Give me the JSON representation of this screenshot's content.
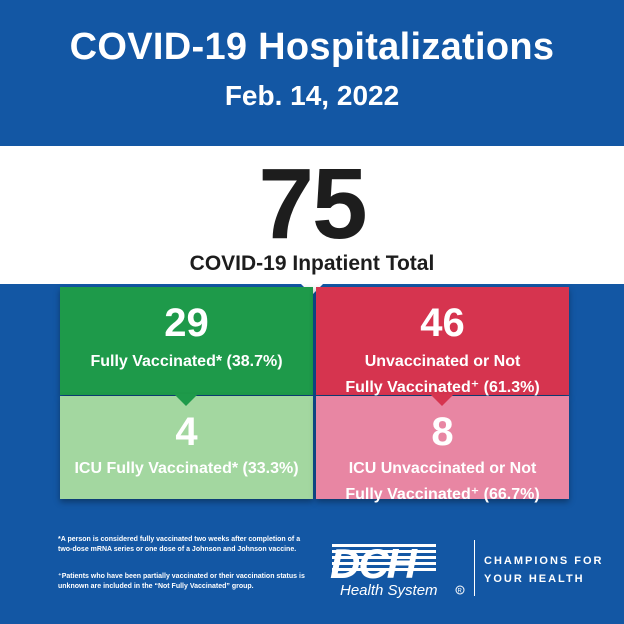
{
  "header": {
    "title": "COVID-19 Hospitalizations",
    "date": "Feb. 14, 2022"
  },
  "total": {
    "number": "75",
    "label": "COVID-19 Inpatient Total"
  },
  "boxes": {
    "fully_vaccinated": {
      "number": "29",
      "label": "Fully Vaccinated* (38.7%)",
      "color": "#1e9a4a"
    },
    "unvaccinated": {
      "number": "46",
      "label_line1": "Unvaccinated or Not",
      "label_line2": "Fully Vaccinated⁺ (61.3%)",
      "color": "#d6344f"
    },
    "icu_fully_vaccinated": {
      "number": "4",
      "label": "ICU Fully Vaccinated* (33.3%)",
      "color": "#a3d7a0"
    },
    "icu_unvaccinated": {
      "number": "8",
      "label_line1": "ICU Unvaccinated or Not",
      "label_line2": "Fully Vaccinated⁺ (66.7%)",
      "color": "#e886a3"
    }
  },
  "footnotes": {
    "note1": "*A person is considered fully vaccinated two weeks after completion of a two-dose mRNA series or one dose of a Johnson and Johnson vaccine.",
    "note2": "⁺Patients who have been partially vaccinated or their vaccination status is unknown are included in the “Not Fully Vaccinated” group."
  },
  "brand": {
    "logo_text": "DCH",
    "logo_subtext": "Health System",
    "tagline_line1": "CHAMPIONS FOR",
    "tagline_line2": "YOUR HEALTH",
    "background_color": "#1357a4"
  }
}
